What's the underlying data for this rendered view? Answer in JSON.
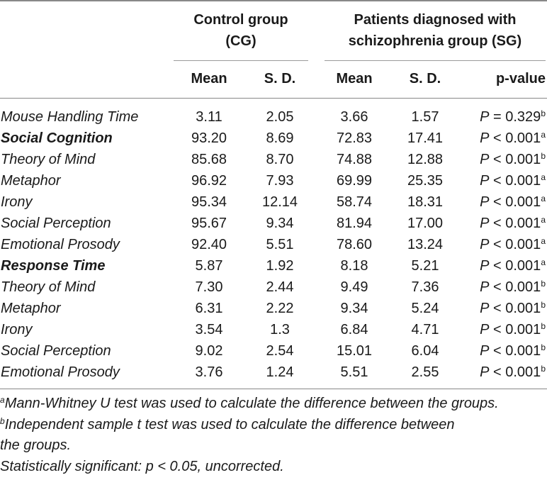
{
  "header": {
    "control_group": "Control group",
    "control_abbr": "(CG)",
    "patients_group": "Patients diagnosed with",
    "patients_group_2": "schizophrenia group (SG)",
    "mean": "Mean",
    "sd": "S. D.",
    "pvalue": "p-value"
  },
  "rows": [
    {
      "label": "Mouse Handling Time",
      "bold": false,
      "cg_mean": "3.11",
      "cg_sd": "2.05",
      "sg_mean": "3.66",
      "sg_sd": "1.57",
      "p_prefix": "P",
      "p_value": "= 0.329",
      "p_sup": "b"
    },
    {
      "label": "Social Cognition",
      "bold": true,
      "cg_mean": "93.20",
      "cg_sd": "8.69",
      "sg_mean": "72.83",
      "sg_sd": "17.41",
      "p_prefix": "P",
      "p_value": "< 0.001",
      "p_sup": "a"
    },
    {
      "label": "Theory of Mind",
      "bold": false,
      "cg_mean": "85.68",
      "cg_sd": "8.70",
      "sg_mean": "74.88",
      "sg_sd": "12.88",
      "p_prefix": "P",
      "p_value": "< 0.001",
      "p_sup": "b"
    },
    {
      "label": "Metaphor",
      "bold": false,
      "cg_mean": "96.92",
      "cg_sd": "7.93",
      "sg_mean": "69.99",
      "sg_sd": "25.35",
      "p_prefix": "P",
      "p_value": "< 0.001",
      "p_sup": "a"
    },
    {
      "label": "Irony",
      "bold": false,
      "cg_mean": "95.34",
      "cg_sd": "12.14",
      "sg_mean": "58.74",
      "sg_sd": "18.31",
      "p_prefix": "P",
      "p_value": "< 0.001",
      "p_sup": "a"
    },
    {
      "label": "Social Perception",
      "bold": false,
      "cg_mean": "95.67",
      "cg_sd": "9.34",
      "sg_mean": "81.94",
      "sg_sd": "17.00",
      "p_prefix": "P",
      "p_value": "< 0.001",
      "p_sup": "a"
    },
    {
      "label": "Emotional Prosody",
      "bold": false,
      "cg_mean": "92.40",
      "cg_sd": "5.51",
      "sg_mean": "78.60",
      "sg_sd": "13.24",
      "p_prefix": "P",
      "p_value": "< 0.001",
      "p_sup": "a"
    },
    {
      "label": "Response Time",
      "bold": true,
      "cg_mean": "5.87",
      "cg_sd": "1.92",
      "sg_mean": "8.18",
      "sg_sd": "5.21",
      "p_prefix": "P",
      "p_value": "< 0.001",
      "p_sup": "a"
    },
    {
      "label": "Theory of Mind",
      "bold": false,
      "cg_mean": "7.30",
      "cg_sd": "2.44",
      "sg_mean": "9.49",
      "sg_sd": "7.36",
      "p_prefix": "P",
      "p_value": "< 0.001",
      "p_sup": "b"
    },
    {
      "label": "Metaphor",
      "bold": false,
      "cg_mean": "6.31",
      "cg_sd": "2.22",
      "sg_mean": "9.34",
      "sg_sd": "5.24",
      "p_prefix": "P",
      "p_value": "< 0.001",
      "p_sup": "b"
    },
    {
      "label": "Irony",
      "bold": false,
      "cg_mean": "3.54",
      "cg_sd": "1.3",
      "sg_mean": "6.84",
      "sg_sd": "4.71",
      "p_prefix": "P",
      "p_value": "< 0.001",
      "p_sup": "b"
    },
    {
      "label": "Social Perception",
      "bold": false,
      "cg_mean": "9.02",
      "cg_sd": "2.54",
      "sg_mean": "15.01",
      "sg_sd": "6.04",
      "p_prefix": "P",
      "p_value": "< 0.001",
      "p_sup": "b"
    },
    {
      "label": "Emotional Prosody",
      "bold": false,
      "cg_mean": "3.76",
      "cg_sd": "1.24",
      "sg_mean": "5.51",
      "sg_sd": "2.55",
      "p_prefix": "P",
      "p_value": "< 0.001",
      "p_sup": "b"
    }
  ],
  "notes": {
    "note_a_sup": "a",
    "note_a": "Mann-Whitney U test was used to calculate the difference between the groups.",
    "note_b_sup": "b",
    "note_b_line1": "Independent sample t test was used to calculate the difference between",
    "note_b_line2": "the groups.",
    "significance": "Statistically significant: p < 0.05, uncorrected."
  }
}
